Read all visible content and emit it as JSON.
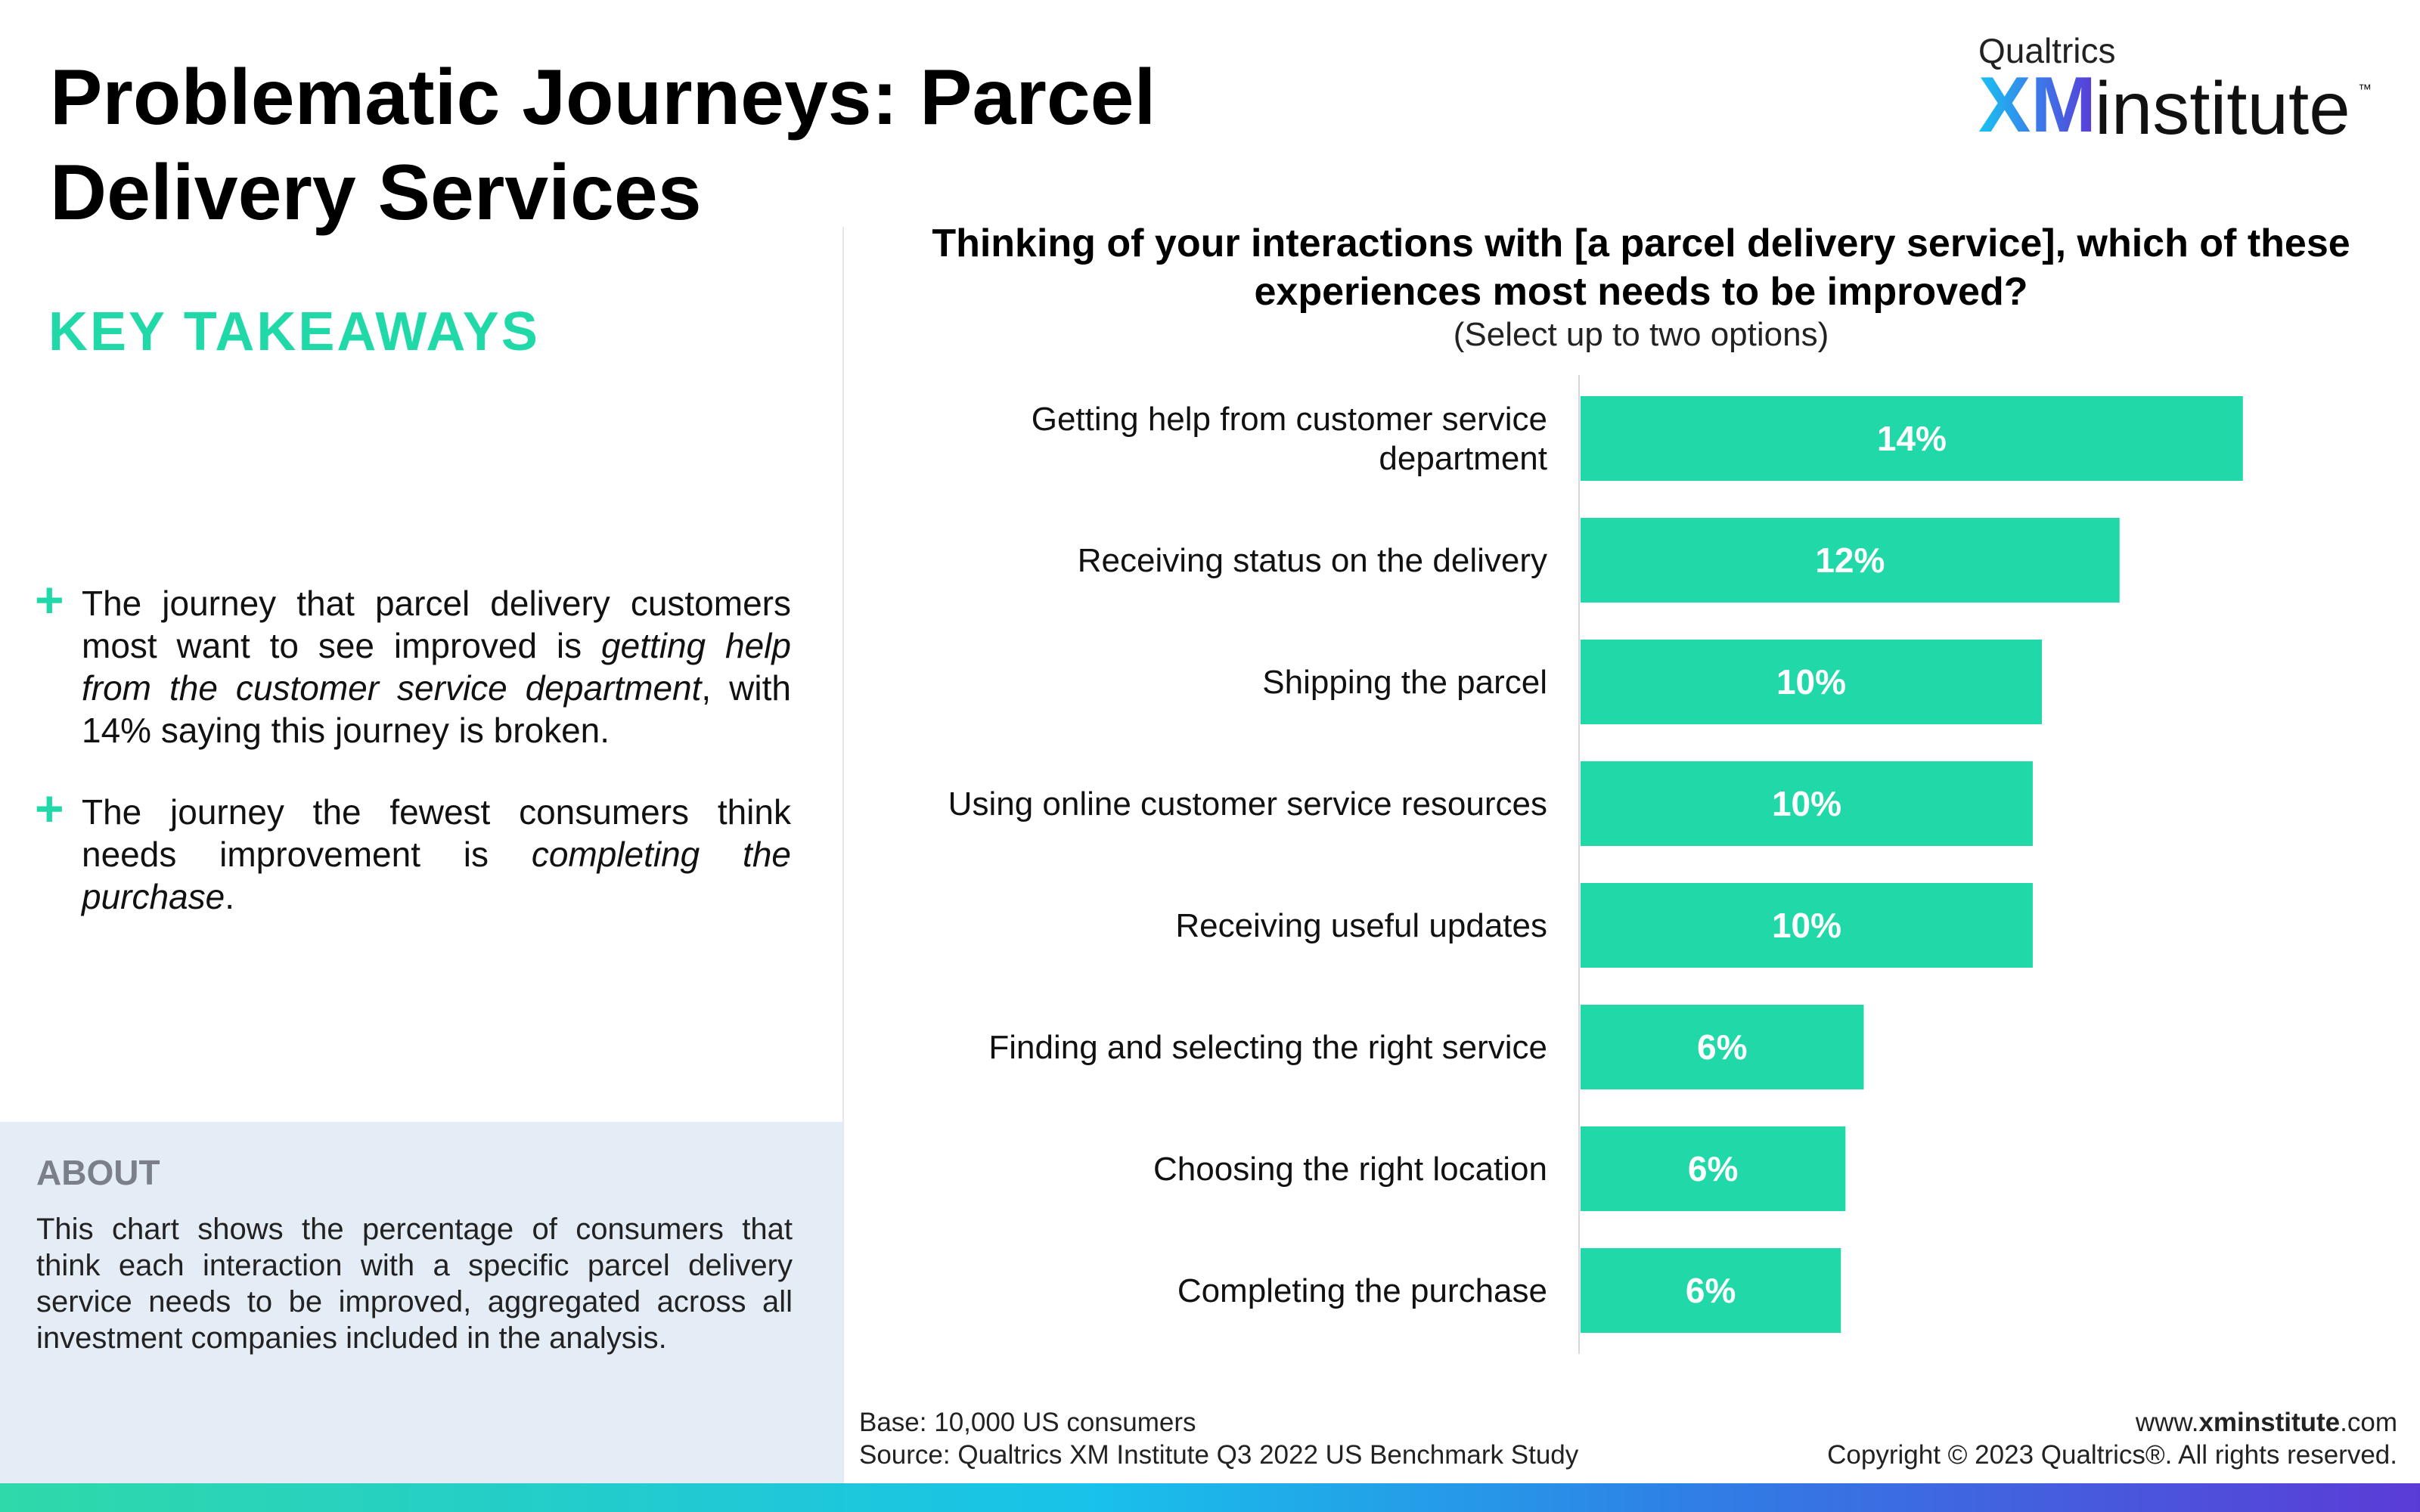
{
  "page": {
    "title_line1": "Problematic Journeys: Parcel",
    "title_line2": "Delivery Services"
  },
  "logo": {
    "top_text": "Qualtrics",
    "xm": "XM",
    "institute": "institute",
    "tm": "™"
  },
  "takeaways": {
    "heading": "KEY TAKEAWAYS",
    "items": [
      {
        "icon": "plus-icon",
        "text_before": "The journey that parcel delivery customers most want to see improved is ",
        "emphasis": "getting help from the customer service department",
        "text_after": ", with 14% saying this journey is broken."
      },
      {
        "icon": "plus-icon",
        "text_before": "The journey the fewest consumers think needs improvement is ",
        "emphasis": "completing the purchase",
        "text_after": "."
      }
    ]
  },
  "about": {
    "heading": "ABOUT",
    "text": "This chart shows the percentage of consumers that think each interaction with a specific parcel delivery service needs to be improved, aggregated across all investment companies included in the analysis."
  },
  "chart_data": {
    "type": "bar",
    "orientation": "horizontal",
    "title": "Thinking of your interactions with [a parcel delivery service], which of these experiences most needs to be improved?",
    "subtitle": "(Select up to two options)",
    "categories": [
      [
        "Getting help from customer service",
        "department"
      ],
      [
        "Receiving status on the delivery"
      ],
      [
        "Shipping the parcel"
      ],
      [
        "Using online customer service resources"
      ],
      [
        "Receiving useful updates"
      ],
      [
        "Finding and selecting the right service"
      ],
      [
        "Choosing the right location"
      ],
      [
        "Completing the purchase"
      ]
    ],
    "values": [
      14.5,
      11.8,
      10.1,
      9.9,
      9.9,
      6.2,
      5.8,
      5.7
    ],
    "labels": [
      "14%",
      "12%",
      "10%",
      "10%",
      "10%",
      "6%",
      "6%",
      "6%"
    ],
    "xlim": [
      0,
      15
    ],
    "grid": false,
    "legend": "none",
    "bar_color": "#21d9a8",
    "label_color": "#ffffff"
  },
  "footer": {
    "base": "Base: 10,000 US consumers",
    "source": "Source: Qualtrics XM Institute Q3 2022 US Benchmark Study",
    "url_prefix": "www.",
    "url_bold": "xminstitute",
    "url_suffix": ".com",
    "copyright": "Copyright © 2023 Qualtrics®. All rights reserved."
  }
}
